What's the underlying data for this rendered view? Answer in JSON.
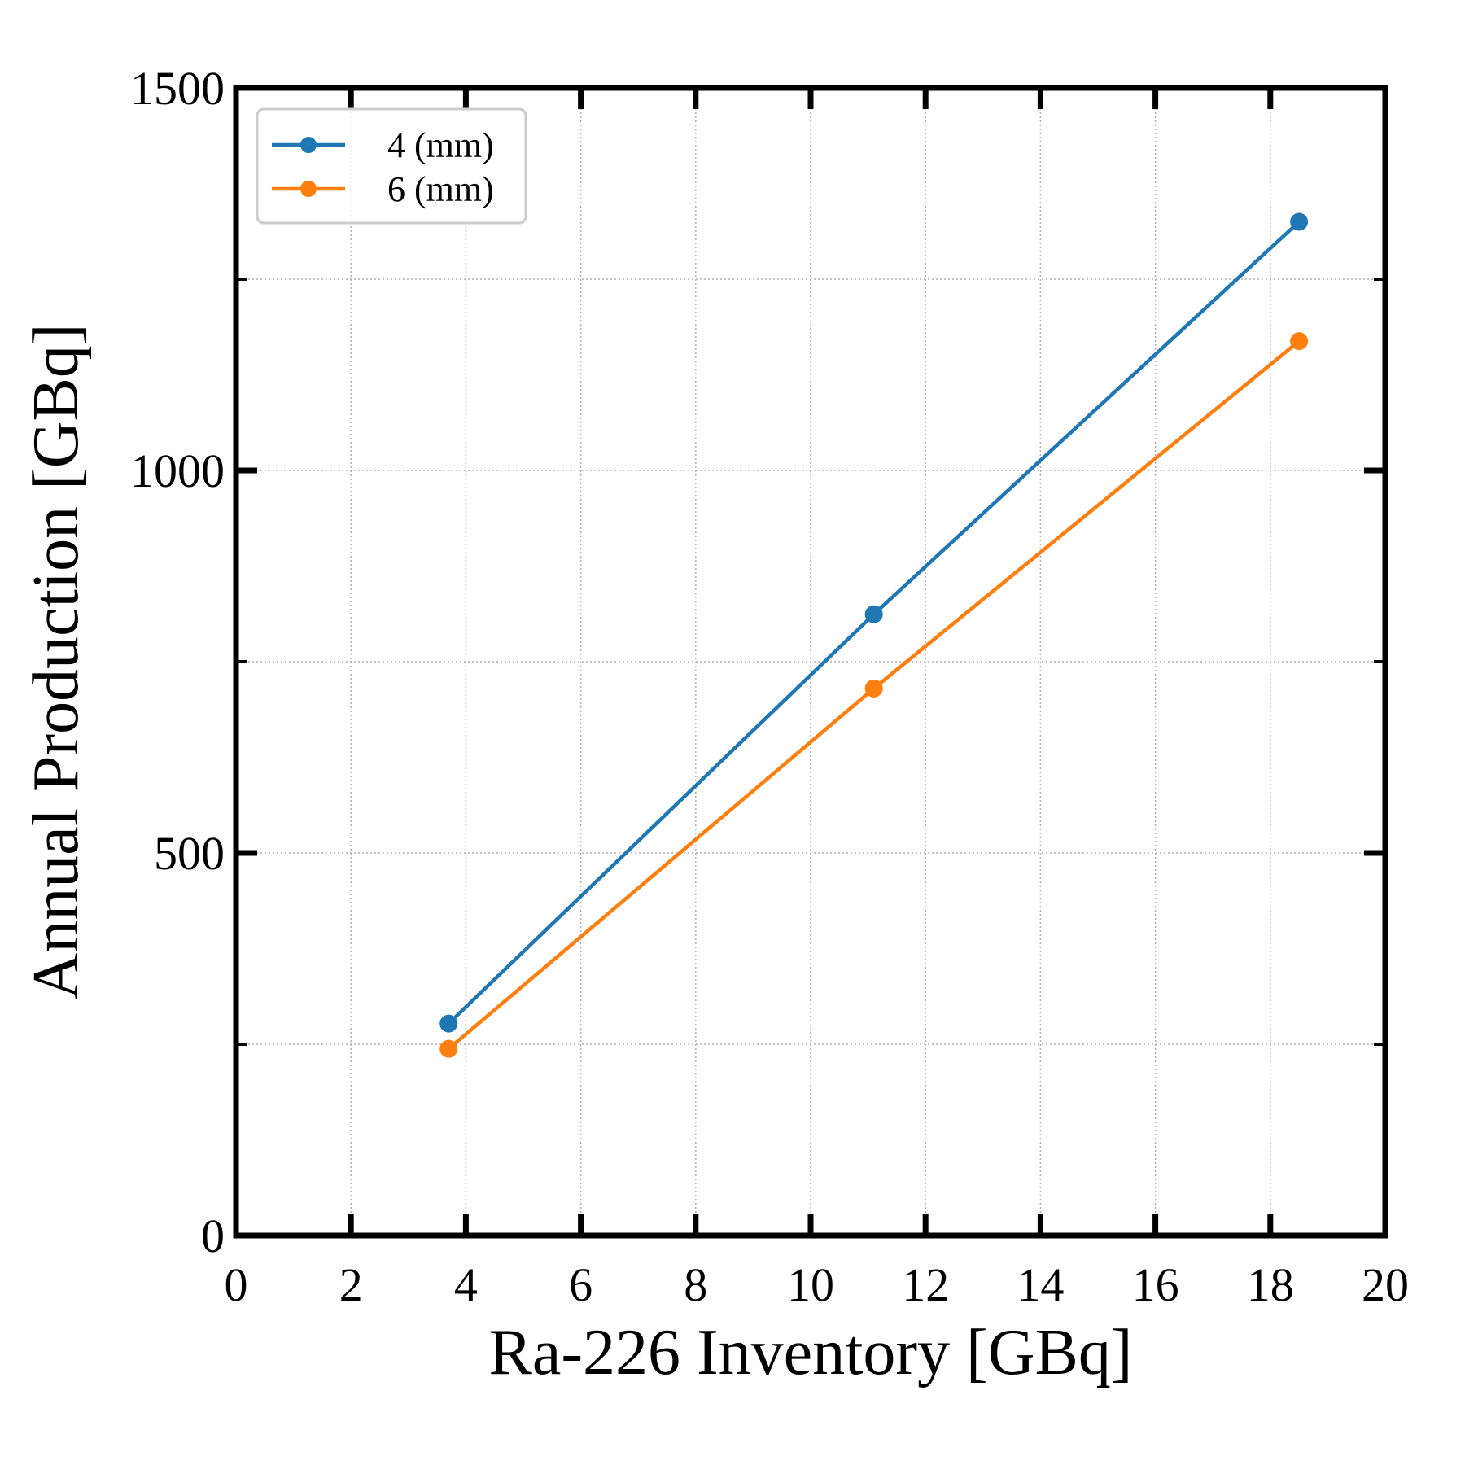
{
  "chart_data": {
    "type": "line",
    "xlabel": "Ra-226 Inventory [GBq]",
    "ylabel": "Annual Production [GBq]",
    "xlim": [
      0,
      20
    ],
    "ylim": [
      0,
      1500
    ],
    "xticks": [
      0,
      2,
      4,
      6,
      8,
      10,
      12,
      14,
      16,
      18,
      20
    ],
    "yticks": [
      0,
      500,
      1000,
      1500
    ],
    "y_minor_ticks": [
      250,
      750,
      1250
    ],
    "grid": true,
    "legend_position": "top-left",
    "series": [
      {
        "name": "4 (mm)",
        "color": "#1f77b4",
        "x": [
          3.7,
          11.1,
          18.5
        ],
        "y": [
          277,
          812,
          1325
        ]
      },
      {
        "name": "6 (mm)",
        "color": "#ff7f0e",
        "x": [
          3.7,
          11.1,
          18.5
        ],
        "y": [
          244,
          715,
          1169
        ]
      }
    ]
  }
}
